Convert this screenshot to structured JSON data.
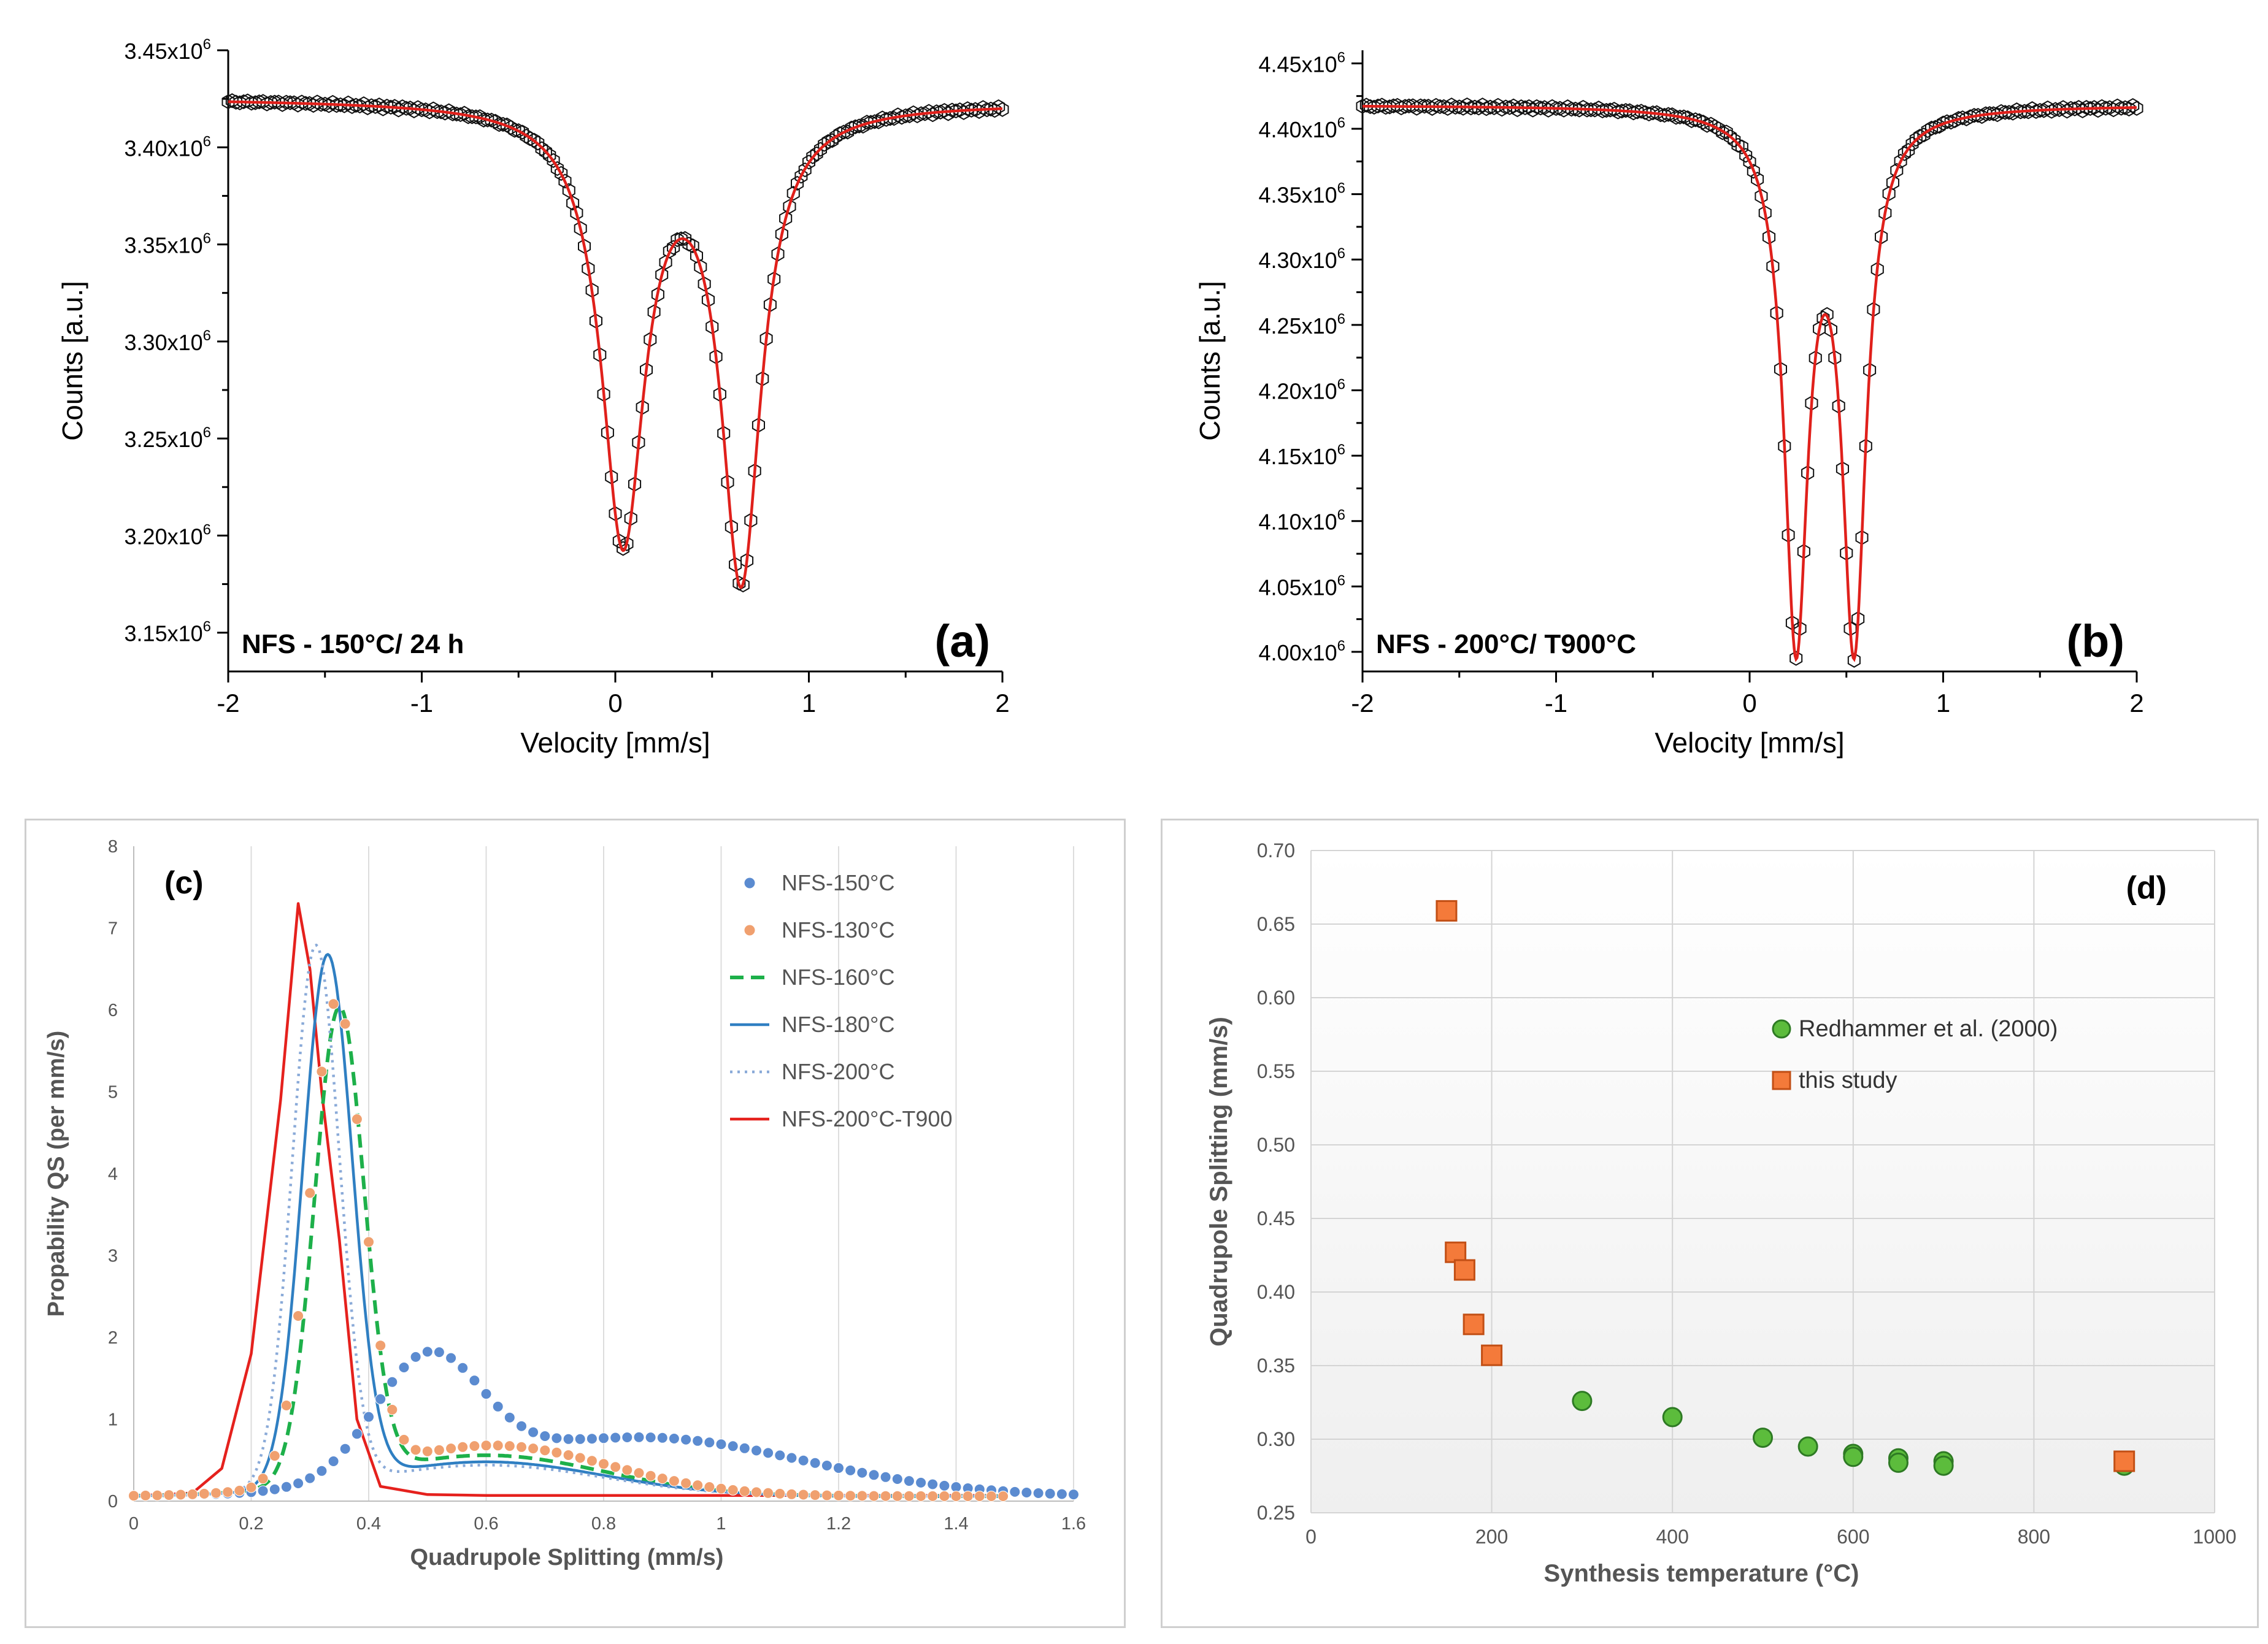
{
  "chart_data": [
    {
      "id": "a",
      "type": "scatter",
      "panel_label": "(a)",
      "annotation": "NFS - 150°C/ 24 h",
      "xlabel": "Velocity [mm/s]",
      "ylabel": "Counts [a.u.]",
      "xlim": [
        -2,
        2
      ],
      "ylim": [
        3130000,
        3450000
      ],
      "x_ticks": [
        "-2",
        "-1",
        "0",
        "1",
        "2"
      ],
      "y_ticks": [
        {
          "value": 3150000,
          "base": "3.15x10",
          "exp": "6"
        },
        {
          "value": 3200000,
          "base": "3.20x10",
          "exp": "6"
        },
        {
          "value": 3250000,
          "base": "3.25x10",
          "exp": "6"
        },
        {
          "value": 3300000,
          "base": "3.30x10",
          "exp": "6"
        },
        {
          "value": 3350000,
          "base": "3.35x10",
          "exp": "6"
        },
        {
          "value": 3400000,
          "base": "3.40x10",
          "exp": "6"
        },
        {
          "value": 3450000,
          "base": "3.45x10",
          "exp": "6"
        }
      ],
      "fit_model": {
        "baseline": 3424000,
        "slope": -500,
        "peaks": [
          {
            "center": 0.04,
            "depth": 222000,
            "width": 0.27
          },
          {
            "center": 0.65,
            "depth": 240000,
            "width": 0.25
          }
        ]
      },
      "series": [
        {
          "name": "data",
          "style": "open-markers",
          "color": "#111111"
        },
        {
          "name": "fit",
          "style": "line",
          "color": "#e0201b"
        }
      ]
    },
    {
      "id": "b",
      "type": "scatter",
      "panel_label": "(b)",
      "annotation": "NFS - 200°C/ T900°C",
      "xlabel": "Velocity [mm/s]",
      "ylabel": "Counts [a.u.]",
      "xlim": [
        -2,
        2
      ],
      "ylim": [
        3985000,
        4460000
      ],
      "x_ticks": [
        "-2",
        "-1",
        "0",
        "1",
        "2"
      ],
      "y_ticks": [
        {
          "value": 4000000,
          "base": "4.00x10",
          "exp": "6"
        },
        {
          "value": 4050000,
          "base": "4.05x10",
          "exp": "6"
        },
        {
          "value": 4100000,
          "base": "4.10x10",
          "exp": "6"
        },
        {
          "value": 4150000,
          "base": "4.15x10",
          "exp": "6"
        },
        {
          "value": 4200000,
          "base": "4.20x10",
          "exp": "6"
        },
        {
          "value": 4250000,
          "base": "4.25x10",
          "exp": "6"
        },
        {
          "value": 4300000,
          "base": "4.30x10",
          "exp": "6"
        },
        {
          "value": 4350000,
          "base": "4.35x10",
          "exp": "6"
        },
        {
          "value": 4400000,
          "base": "4.40x10",
          "exp": "6"
        },
        {
          "value": 4450000,
          "base": "4.45x10",
          "exp": "6"
        }
      ],
      "fit_model": {
        "baseline": 4418000,
        "slope": 0,
        "peaks": [
          {
            "center": 0.24,
            "depth": 400000,
            "width": 0.15
          },
          {
            "center": 0.54,
            "depth": 400000,
            "width": 0.15
          }
        ]
      },
      "series": [
        {
          "name": "data",
          "style": "open-markers",
          "color": "#111111"
        },
        {
          "name": "fit",
          "style": "line",
          "color": "#e0201b"
        }
      ]
    },
    {
      "id": "c",
      "type": "line",
      "panel_label": "(c)",
      "xlabel": "Quadrupole Splitting (mm/s)",
      "ylabel": "Propability QS (per mm/s)",
      "xlim": [
        0,
        1.6
      ],
      "ylim": [
        0,
        8
      ],
      "x_ticks": [
        "0",
        "0.2",
        "0.4",
        "0.6",
        "0.8",
        "1",
        "1.2",
        "1.4",
        "1.6"
      ],
      "y_ticks": [
        "0",
        "1",
        "2",
        "3",
        "4",
        "5",
        "6",
        "7",
        "8"
      ],
      "grid": "vertical",
      "legend": "top-right",
      "series": [
        {
          "name": "NFS-150°C",
          "style": "markers",
          "color": "#5b8bd0",
          "components": [
            {
              "c": 0.5,
              "h": 1.45,
              "w": 0.09
            },
            {
              "c": 0.86,
              "h": 0.72,
              "w": 0.28
            }
          ],
          "xmax": 1.6
        },
        {
          "name": "NFS-130°C",
          "style": "markers",
          "color": "#f0a06f",
          "components": [
            {
              "c": 0.345,
              "h": 5.8,
              "w": 0.045
            },
            {
              "c": 0.61,
              "h": 0.62,
              "w": 0.2
            }
          ],
          "xmax": 1.48
        },
        {
          "name": "NFS-160°C",
          "style": "dashed",
          "color": "#1db04a",
          "components": [
            {
              "c": 0.35,
              "h": 5.75,
              "w": 0.042
            },
            {
              "c": 0.6,
              "h": 0.5,
              "w": 0.2
            }
          ],
          "xmax": 1.48
        },
        {
          "name": "NFS-180°C",
          "style": "solid",
          "color": "#2f7fc2",
          "components": [
            {
              "c": 0.33,
              "h": 6.45,
              "w": 0.042
            },
            {
              "c": 0.6,
              "h": 0.42,
              "w": 0.2
            }
          ],
          "xmax": 1.48
        },
        {
          "name": "NFS-200°C",
          "style": "dotted",
          "color": "#8aaad8",
          "components": [
            {
              "c": 0.31,
              "h": 6.6,
              "w": 0.04
            },
            {
              "c": 0.6,
              "h": 0.38,
              "w": 0.2
            }
          ],
          "xmax": 1.48
        },
        {
          "name": "NFS-200°C-T900",
          "style": "solid",
          "color": "#e5211d",
          "points": [
            [
              0,
              0.07
            ],
            [
              0.05,
              0.08
            ],
            [
              0.1,
              0.1
            ],
            [
              0.15,
              0.4
            ],
            [
              0.2,
              1.8
            ],
            [
              0.25,
              4.9
            ],
            [
              0.28,
              7.3
            ],
            [
              0.3,
              6.5
            ],
            [
              0.32,
              5.0
            ],
            [
              0.35,
              3.2
            ],
            [
              0.38,
              1.0
            ],
            [
              0.42,
              0.18
            ],
            [
              0.5,
              0.08
            ],
            [
              0.6,
              0.07
            ],
            [
              0.8,
              0.07
            ],
            [
              1.0,
              0.07
            ],
            [
              1.2,
              0.07
            ],
            [
              1.47,
              0.07
            ]
          ]
        }
      ]
    },
    {
      "id": "d",
      "type": "scatter",
      "panel_label": "(d)",
      "xlabel": "Synthesis temperature (°C)",
      "ylabel": "Quadrupole Splitting (mm/s)",
      "xlim": [
        0,
        1000
      ],
      "ylim": [
        0.25,
        0.7
      ],
      "x_ticks": [
        "0",
        "200",
        "400",
        "600",
        "800",
        "1000"
      ],
      "y_ticks": [
        "0.25",
        "0.30",
        "0.35",
        "0.40",
        "0.45",
        "0.50",
        "0.55",
        "0.60",
        "0.65",
        "0.70"
      ],
      "grid": "both",
      "legend": "center-right",
      "series": [
        {
          "name": "Redhammer et al. (2000)",
          "marker": "circle",
          "color": "#5cbc3c",
          "edge": "#2e7a24",
          "points": [
            [
              300,
              0.326
            ],
            [
              400,
              0.315
            ],
            [
              500,
              0.301
            ],
            [
              550,
              0.295
            ],
            [
              600,
              0.29
            ],
            [
              600,
              0.288
            ],
            [
              650,
              0.287
            ],
            [
              650,
              0.284
            ],
            [
              700,
              0.285
            ],
            [
              700,
              0.282
            ],
            [
              900,
              0.282
            ]
          ]
        },
        {
          "name": "this study",
          "marker": "square",
          "color": "#f47a3a",
          "edge": "#c24f15",
          "points": [
            [
              150,
              0.659
            ],
            [
              160,
              0.427
            ],
            [
              170,
              0.415
            ],
            [
              180,
              0.378
            ],
            [
              200,
              0.357
            ],
            [
              900,
              0.285
            ]
          ]
        }
      ]
    }
  ]
}
